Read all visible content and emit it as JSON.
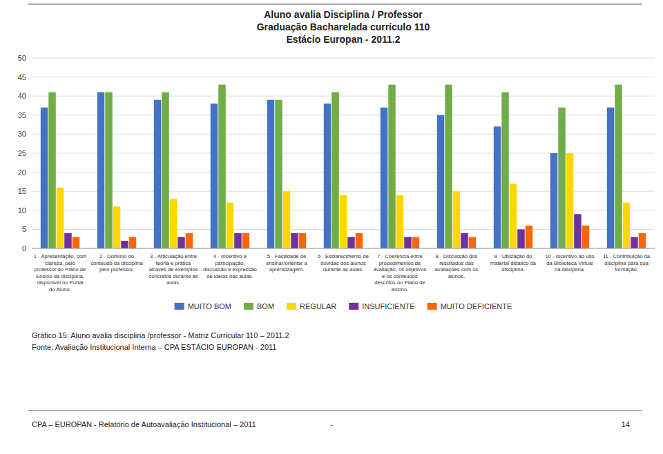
{
  "chart_data": {
    "type": "bar",
    "title": "Aluno avalia Disciplina / Professor\nGraduação Bacharelada currículo 110\nEstácio Europan - 2011.2",
    "categories": [
      "1 - Apresentação, com\nclareza, pelo\nprofessor do Plano de\nEnsino da disciplina,\ndisponível no Portal\ndo Aluno.",
      "2 - Domínio do\nconteúdo da disciplina\npelo professor.",
      "3 - Articulação entre\nteoria e prática\natravés de exemplos\nconcretos durante as\naulas.",
      "4 - Incentivo à\nparticipação,\ndiscussão e expressão\nde idéias nas aulas.",
      "5 - Facilidade de\nensinar/orientar a\naprendizagem.",
      "6 - Esclarecimento de\ndúvidas dos alunos\ndurante as aulas.",
      "7 - Coerência entre\nprocedimentos de\navaliação, os objetivos\ne os conteúdos\ndescritos no Plano de\nensino.",
      "8 - Discussão dos\nresultados das\navaliações com os\nalunos.",
      "9 - Utilização do\nmaterial didático da\ndisciplina.",
      "10 - Incentivo ao uso\nda Biblioteca Virtual\nna disciplina.",
      "11 - Contribuição da\ndisciplina para sua\nformação."
    ],
    "series": [
      {
        "name": "MUITO BOM",
        "color": "#4472C4",
        "values": [
          37,
          41,
          39,
          38,
          39,
          38,
          37,
          35,
          32,
          25,
          37
        ]
      },
      {
        "name": "BOM",
        "color": "#70AD47",
        "values": [
          41,
          41,
          41,
          43,
          39,
          41,
          43,
          43,
          41,
          37,
          43
        ]
      },
      {
        "name": "REGULAR",
        "color": "#FFD700",
        "values": [
          16,
          11,
          13,
          12,
          15,
          14,
          14,
          15,
          17,
          25,
          12
        ]
      },
      {
        "name": "INSUFICIENTE",
        "color": "#7030A0",
        "values": [
          4,
          2,
          3,
          4,
          4,
          3,
          3,
          4,
          5,
          9,
          3
        ]
      },
      {
        "name": "MUITO DEFICIENTE",
        "color": "#FF6600",
        "values": [
          3,
          3,
          4,
          4,
          4,
          4,
          3,
          3,
          6,
          6,
          4
        ]
      }
    ],
    "ylim": [
      0,
      50
    ],
    "yticks": [
      0,
      5,
      10,
      15,
      20,
      25,
      30,
      35,
      40,
      45,
      50
    ],
    "grid": true,
    "legend": "bottom",
    "annotations": [
      "Gráfico 15: Aluno avalia disciplina /professor - Matriz Curricular 110 – 2011.2",
      "Fonte: Avaliação Institucional Interna – CPA ESTÁCIO EUROPAN - 2011",
      "CPA – EUROPAN - Relatório de Autoavaliação Institucional – 2011",
      "-",
      "14"
    ]
  }
}
